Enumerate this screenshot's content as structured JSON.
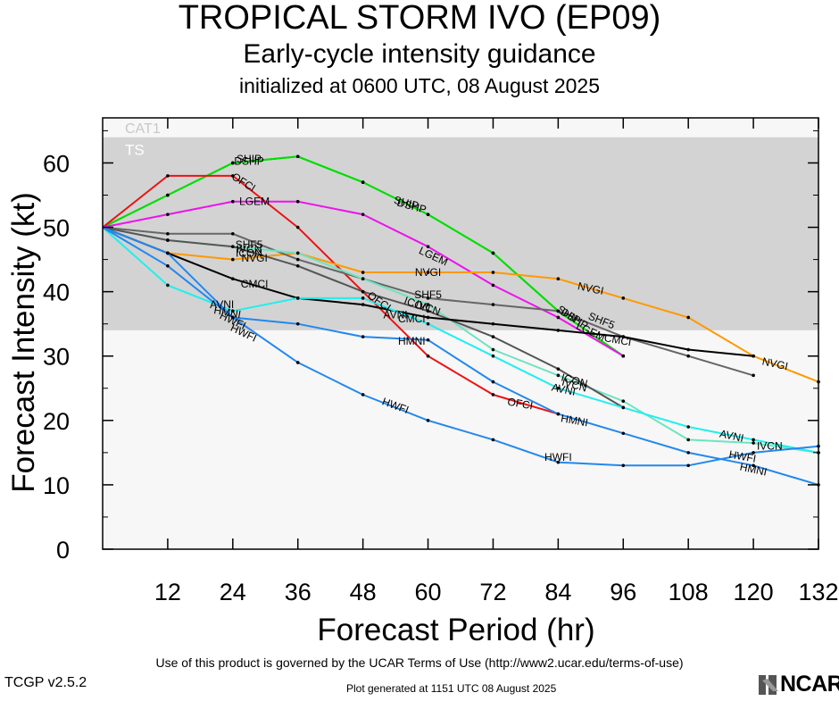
{
  "header": {
    "title": "TROPICAL STORM IVO (EP09)",
    "subtitle": "Early-cycle intensity guidance",
    "init": "initialized at 0600 UTC, 08 August 2025"
  },
  "footer": {
    "terms": "Use of this product is governed by the UCAR Terms of Use (http://www2.ucar.edu/terms-of-use)",
    "version": "TCGP v2.5.2",
    "generated": "Plot generated at 1151 UTC   08 August 2025",
    "logo": "NCAR"
  },
  "chart_data": {
    "type": "line",
    "xlabel": "Forecast Period (hr)",
    "ylabel": "Forecast Intensity (kt)",
    "xlim": [
      0,
      132
    ],
    "ylim": [
      0,
      67
    ],
    "xticks": [
      12,
      24,
      36,
      48,
      60,
      72,
      84,
      96,
      108,
      120,
      132
    ],
    "yticks": [
      0,
      10,
      20,
      30,
      40,
      50,
      60
    ],
    "bands": [
      {
        "label": "TS",
        "from": 34,
        "to": 64,
        "color": "#d3d3d3"
      },
      {
        "label": "CAT1",
        "from": 64,
        "to": 67,
        "color": "#f7f7f7"
      }
    ],
    "series": [
      {
        "name": "DSHP",
        "color": "#00dd00",
        "x": [
          0,
          12,
          24,
          36,
          48,
          60,
          72,
          84,
          96
        ],
        "y": [
          50,
          55,
          60,
          61,
          57,
          52,
          46,
          37,
          30
        ],
        "labels": [
          {
            "text": "DSHP",
            "x": 27,
            "y": 60.3,
            "angle": 0
          },
          {
            "text": "DSHP",
            "x": 57,
            "y": 53.3,
            "angle": 15
          },
          {
            "text": "DSHP",
            "x": 87,
            "y": 35.8,
            "angle": 32
          }
        ]
      },
      {
        "name": "SHIP",
        "color": "#00dd00",
        "x": [
          0,
          12,
          24,
          36,
          48,
          60,
          72,
          84,
          96
        ],
        "y": [
          50,
          55,
          60,
          61,
          57,
          52,
          46,
          37,
          30
        ],
        "labels": [
          {
            "text": "SHIP",
            "x": 27,
            "y": 60.6,
            "angle": 0
          },
          {
            "text": "SHIP",
            "x": 56,
            "y": 53.8,
            "angle": 15
          },
          {
            "text": "SHIP",
            "x": 86,
            "y": 36.4,
            "angle": 32
          }
        ]
      },
      {
        "name": "OFCI",
        "color": "#ee1111",
        "x": [
          0,
          12,
          24,
          36,
          48,
          60,
          72,
          84
        ],
        "y": [
          50,
          58,
          58,
          50,
          40,
          30,
          24,
          21
        ],
        "labels": [
          {
            "text": "OFCI",
            "x": 26,
            "y": 57,
            "angle": 32
          },
          {
            "text": "OFCI",
            "x": 51,
            "y": 38.5,
            "angle": 35
          },
          {
            "text": "OFCI",
            "x": 77,
            "y": 22.6,
            "angle": 10
          }
        ]
      },
      {
        "name": "LGEM",
        "color": "#ee11ee",
        "x": [
          0,
          12,
          24,
          36,
          48,
          60,
          72,
          84,
          96
        ],
        "y": [
          50,
          52,
          54,
          54,
          52,
          47,
          41,
          36,
          30
        ],
        "labels": [
          {
            "text": "LGEM",
            "x": 28,
            "y": 54,
            "angle": 0
          },
          {
            "text": "LGEM",
            "x": 61,
            "y": 45.5,
            "angle": 25
          },
          {
            "text": "LGEM",
            "x": 90,
            "y": 33.8,
            "angle": 25
          }
        ]
      },
      {
        "name": "NVGI",
        "color": "#ff9900",
        "x": [
          0,
          12,
          24,
          36,
          48,
          60,
          72,
          84,
          96,
          108,
          120,
          132
        ],
        "y": [
          50,
          46,
          45,
          46,
          43,
          43,
          43,
          42,
          39,
          36,
          30,
          26
        ],
        "labels": [
          {
            "text": "NVGI",
            "x": 28,
            "y": 45.2,
            "angle": 0
          },
          {
            "text": "NVGI",
            "x": 60,
            "y": 43,
            "angle": 0
          },
          {
            "text": "NVGI",
            "x": 90,
            "y": 40.5,
            "angle": 12
          },
          {
            "text": "NVGI",
            "x": 124,
            "y": 28.8,
            "angle": 12
          }
        ]
      },
      {
        "name": "SHF5",
        "color": "#666666",
        "x": [
          0,
          12,
          24,
          36,
          48,
          60,
          72,
          84,
          96,
          108,
          120
        ],
        "y": [
          50,
          49,
          49,
          45,
          42,
          39,
          38,
          37,
          33,
          30,
          27
        ],
        "labels": [
          {
            "text": "SHF5",
            "x": 27,
            "y": 47.3,
            "angle": 0
          },
          {
            "text": "SHF5",
            "x": 60,
            "y": 39.5,
            "angle": 0
          },
          {
            "text": "SHF5",
            "x": 92,
            "y": 35.5,
            "angle": 22
          }
        ]
      },
      {
        "name": "IVCN",
        "color": "#6fe3c0",
        "x": [
          0,
          12,
          24,
          36,
          48,
          60,
          72,
          84,
          96,
          108,
          120,
          132
        ],
        "y": [
          50,
          48,
          47,
          46,
          42,
          38,
          31,
          27,
          23,
          17,
          16.5,
          15
        ],
        "labels": [
          {
            "text": "IVCN",
            "x": 27,
            "y": 46.6,
            "angle": 0
          },
          {
            "text": "IVCN",
            "x": 60,
            "y": 37.5,
            "angle": 20
          },
          {
            "text": "IVCN",
            "x": 87,
            "y": 25.5,
            "angle": 15
          },
          {
            "text": "IVCN",
            "x": 123,
            "y": 16,
            "angle": 0
          }
        ]
      },
      {
        "name": "ICON",
        "color": "#555555",
        "x": [
          0,
          12,
          24,
          36,
          48,
          60,
          72,
          84,
          96
        ],
        "y": [
          50,
          48,
          47,
          44,
          40,
          37,
          33,
          28,
          22
        ],
        "labels": [
          {
            "text": "ICON",
            "x": 27,
            "y": 46,
            "angle": 0
          },
          {
            "text": "ICON",
            "x": 58,
            "y": 38,
            "angle": 20
          },
          {
            "text": "ICON",
            "x": 87,
            "y": 26.2,
            "angle": 15
          }
        ]
      },
      {
        "name": "CMCI",
        "color": "#000000",
        "x": [
          0,
          12,
          24,
          36,
          48,
          60,
          72,
          84,
          96,
          108,
          120
        ],
        "y": [
          50,
          46,
          42,
          39,
          38,
          36,
          35,
          34,
          33,
          31,
          30
        ],
        "labels": [
          {
            "text": "CMCI",
            "x": 28,
            "y": 41.2,
            "angle": 0
          },
          {
            "text": "CMCI",
            "x": 57,
            "y": 35.8,
            "angle": 0
          },
          {
            "text": "CMCI",
            "x": 95,
            "y": 32.5,
            "angle": 10
          }
        ]
      },
      {
        "name": "AVNI",
        "color": "#22eeee",
        "x": [
          0,
          12,
          24,
          36,
          48,
          60,
          72,
          84,
          96,
          108,
          120,
          132
        ],
        "y": [
          50,
          41,
          37,
          39,
          39,
          35,
          30,
          25,
          22,
          19,
          17,
          15
        ],
        "labels": [
          {
            "text": "AVNI",
            "x": 22,
            "y": 38,
            "angle": 0
          },
          {
            "text": "AVNI",
            "x": 54,
            "y": 36.4,
            "angle": 0
          },
          {
            "text": "AVNI",
            "x": 85,
            "y": 24.8,
            "angle": 12
          },
          {
            "text": "AVNI",
            "x": 116,
            "y": 17.6,
            "angle": 12
          }
        ]
      },
      {
        "name": "HMNI",
        "color": "#2288ee",
        "x": [
          0,
          12,
          24,
          36,
          48,
          60,
          72,
          84,
          96,
          108,
          120,
          132
        ],
        "y": [
          50,
          44,
          36,
          35,
          33,
          32.5,
          26,
          21,
          18,
          15,
          13,
          10
        ],
        "labels": [
          {
            "text": "HMNI",
            "x": 23,
            "y": 36.8,
            "angle": 10
          },
          {
            "text": "HMNI",
            "x": 57,
            "y": 32.3,
            "angle": 0
          },
          {
            "text": "HMNI",
            "x": 87,
            "y": 20,
            "angle": 10
          },
          {
            "text": "HMNI",
            "x": 120,
            "y": 12.4,
            "angle": 12
          }
        ]
      },
      {
        "name": "HWFI",
        "color": "#2288ee",
        "x": [
          0,
          12,
          24,
          36,
          48,
          60,
          72,
          84,
          96,
          108,
          120,
          132
        ],
        "y": [
          50,
          46,
          36,
          29,
          24,
          20,
          17,
          13.5,
          13,
          13,
          15,
          16
        ],
        "labels": [
          {
            "text": "HWFI",
            "x": 24,
            "y": 35.5,
            "angle": 25
          },
          {
            "text": "HWFI",
            "x": 26,
            "y": 33.6,
            "angle": 25
          },
          {
            "text": "HWFI",
            "x": 54,
            "y": 22.3,
            "angle": 20
          },
          {
            "text": "HWFI",
            "x": 84,
            "y": 14.3,
            "angle": 0
          },
          {
            "text": "HWFI",
            "x": 118,
            "y": 14.4,
            "angle": 10
          }
        ]
      }
    ]
  }
}
